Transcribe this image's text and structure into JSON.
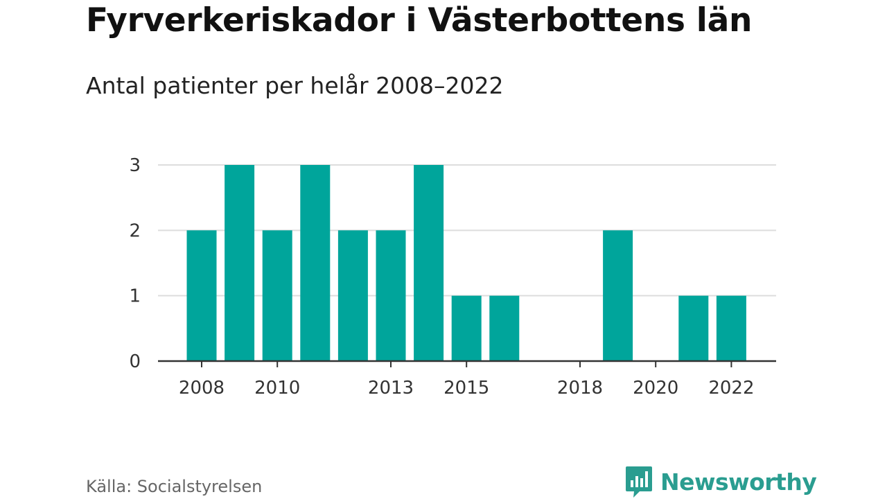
{
  "title": "Fyrverkeriskador i Västerbottens län",
  "subtitle": "Antal patienter per helår 2008–2022",
  "source": "Källa: Socialstyrelsen",
  "brand": {
    "name": "Newsworthy",
    "icon": "newsworthy-logo-icon",
    "color": "#2a9d90"
  },
  "chart_data": {
    "type": "bar",
    "title": "Fyrverkeriskador i Västerbottens län",
    "subtitle": "Antal patienter per helår 2008–2022",
    "categories": [
      "2008",
      "2009",
      "2010",
      "2011",
      "2012",
      "2013",
      "2014",
      "2015",
      "2016",
      "2017",
      "2018",
      "2019",
      "2020",
      "2021",
      "2022"
    ],
    "values": [
      2,
      3,
      2,
      3,
      2,
      2,
      3,
      1,
      1,
      0,
      0,
      2,
      0,
      1,
      1
    ],
    "x_tick_labels": [
      "2008",
      "2010",
      "2013",
      "2015",
      "2018",
      "2020",
      "2022"
    ],
    "y_ticks": [
      0,
      1,
      2,
      3
    ],
    "ylim": [
      0,
      3
    ],
    "grid": true,
    "bar_color": "#00a59b",
    "xlabel": "",
    "ylabel": ""
  }
}
